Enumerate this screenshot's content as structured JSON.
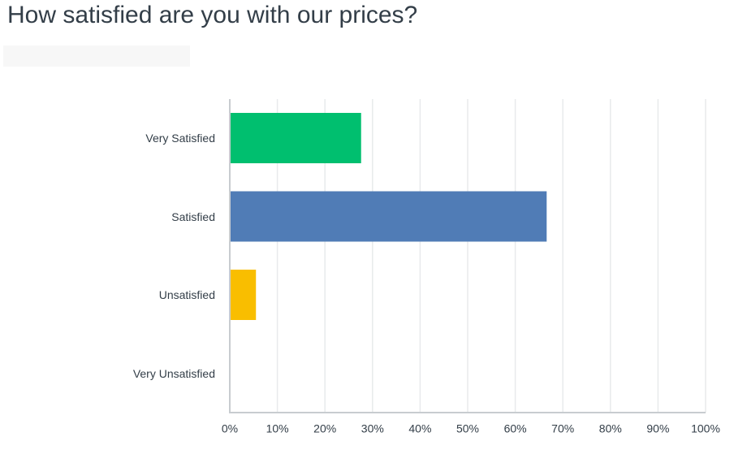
{
  "chart_data": {
    "type": "bar",
    "orientation": "horizontal",
    "title": "How satisfied are you with our prices?",
    "categories": [
      "Very Satisfied",
      "Satisfied",
      "Unsatisfied",
      "Very Unsatisfied"
    ],
    "values": [
      27.6,
      66.6,
      5.5,
      0
    ],
    "colors": [
      "#00bf6f",
      "#507cb6",
      "#f9be00",
      "#7d8a93"
    ],
    "xlim": [
      0,
      100
    ],
    "xticks": [
      {
        "value": 0,
        "label": "0%"
      },
      {
        "value": 10,
        "label": "10%"
      },
      {
        "value": 20,
        "label": "20%"
      },
      {
        "value": 30,
        "label": "30%"
      },
      {
        "value": 40,
        "label": "40%"
      },
      {
        "value": 50,
        "label": "50%"
      },
      {
        "value": 60,
        "label": "60%"
      },
      {
        "value": 70,
        "label": "70%"
      },
      {
        "value": 80,
        "label": "80%"
      },
      {
        "value": 90,
        "label": "90%"
      },
      {
        "value": 100,
        "label": "100%"
      }
    ],
    "grid": true
  }
}
